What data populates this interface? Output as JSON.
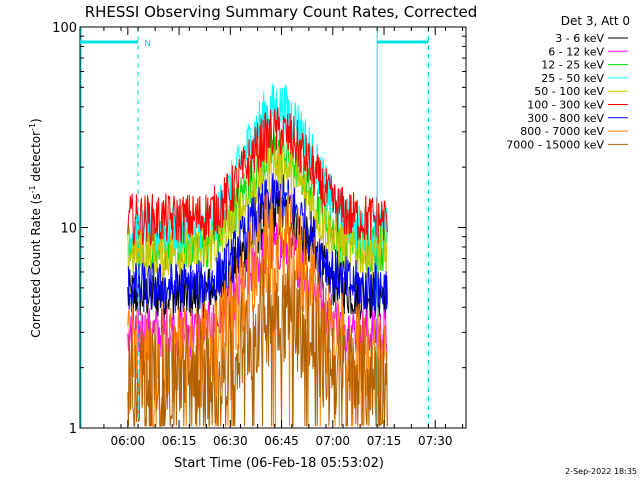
{
  "chart_data": {
    "type": "line",
    "title": "RHESSI Observing Summary Count Rates, Corrected",
    "xlabel": "Start Time (06-Feb-18 05:53:02)",
    "ylabel_main": "Corrected Count Rate (s",
    "ylabel_sup1": "-1",
    "ylabel_mid": " detector",
    "ylabel_sup2": "-1",
    "ylabel_end": ")",
    "yscale": "log",
    "ylim": [
      1,
      100
    ],
    "xlim_min": [
      -7,
      56
    ],
    "x_tick_labels": [
      "06:00",
      "06:15",
      "06:30",
      "06:45",
      "07:00",
      "07:15",
      "07:30"
    ],
    "x_tick_minutes": [
      7,
      22,
      37,
      52,
      67,
      82,
      97
    ],
    "y_tick_labels": [
      "1",
      "10",
      "100"
    ],
    "y_tick_values": [
      1,
      10,
      100
    ],
    "legend_header": "Det 3, Att 0",
    "legend_placement": "right",
    "series": [
      {
        "name": "3 - 6 keV",
        "color": "#000000",
        "base": [
          4.6,
          11.5
        ]
      },
      {
        "name": "6 - 12 keV",
        "color": "#ff00ff",
        "base": [
          3.0,
          8.0
        ]
      },
      {
        "name": "12 - 25 keV",
        "color": "#00dd00",
        "base": [
          8.0,
          24.0
        ]
      },
      {
        "name": "25 - 50 keV",
        "color": "#00ffff",
        "base": [
          9.5,
          40.0
        ]
      },
      {
        "name": "50 - 100 keV",
        "color": "#c8c800",
        "base": [
          7.5,
          20.0
        ]
      },
      {
        "name": "100 - 300 keV",
        "color": "#ff0000",
        "base": [
          11.0,
          30.0
        ]
      },
      {
        "name": "300 - 800 keV",
        "color": "#0000ff",
        "base": [
          5.0,
          14.0
        ]
      },
      {
        "name": "800 - 7000 keV",
        "color": "#ff8000",
        "base": [
          2.2,
          8.5
        ]
      },
      {
        "name": "7000 - 15000 keV",
        "color": "#b06000",
        "base": [
          1.8,
          4.0
        ]
      }
    ],
    "data_window_minutes": [
      7,
      83
    ],
    "peak_minute": 51,
    "annotations": [
      {
        "label": "N",
        "kind": "night",
        "x_min": [
          -7,
          10
        ],
        "dash_at": 10
      },
      {
        "label": "",
        "kind": "night",
        "x_min": [
          80,
          95
        ],
        "dash_at": 95
      }
    ],
    "timestamp": "2-Sep-2022 18:35"
  }
}
